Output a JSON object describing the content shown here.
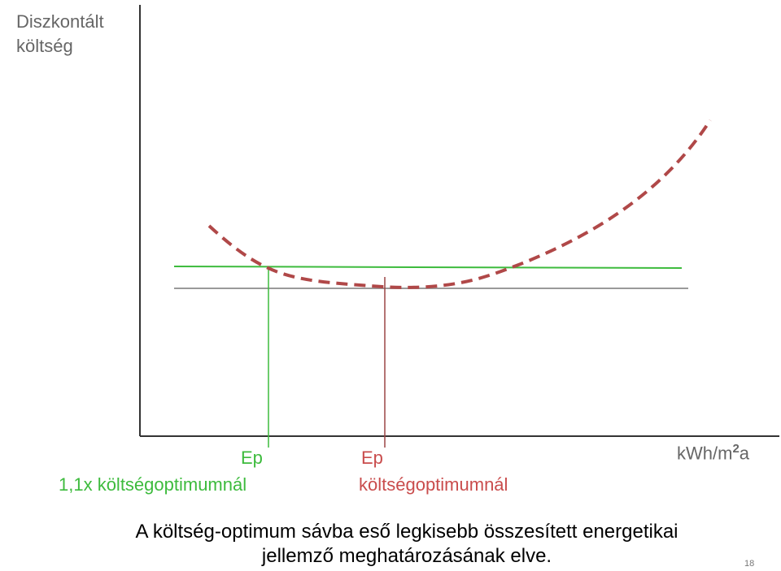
{
  "chart_data": {
    "type": "line",
    "ylabel_lines": [
      "Diszkontált",
      "költség"
    ],
    "xlabel": "kWh/m",
    "xlabel_sup": "2",
    "xlabel_suffix": "a",
    "markers": [
      {
        "label": "Ep",
        "caption": "1,1x költségoptimumnál",
        "color": "#3dbb3d"
      },
      {
        "label": "Ep",
        "caption": "költségoptimumnál",
        "color": "#c94c4c"
      }
    ],
    "curve": {
      "style": "dashed",
      "color": "#b04848"
    },
    "optimum_line_color": "#999999",
    "band_line_color": "#3dbb3d"
  },
  "caption": {
    "line1": "A költség-optimum sávba eső legkisebb összesített energetikai",
    "line2": "jellemző meghatározásának elve."
  },
  "page_number": "18"
}
